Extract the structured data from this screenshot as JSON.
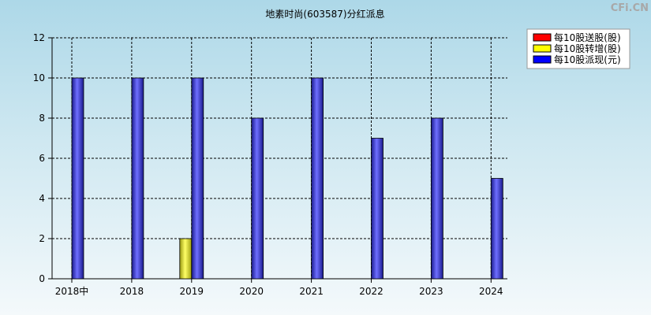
{
  "watermark": "CFi.CN",
  "chart_data": {
    "type": "bar",
    "title": "地素时尚(603587)分红派息",
    "xlabel": "",
    "ylabel": "",
    "categories": [
      "2018中",
      "2018",
      "2019",
      "2020",
      "2021",
      "2022",
      "2023",
      "2024"
    ],
    "series": [
      {
        "name": "每10股送股(股)",
        "color": "#ff0000",
        "values": [
          0,
          0,
          0,
          0,
          0,
          0,
          0,
          0
        ]
      },
      {
        "name": "每10股转增(股)",
        "color": "#ffff00",
        "values": [
          0,
          0,
          2,
          0,
          0,
          0,
          0,
          0
        ]
      },
      {
        "name": "每10股派现(元)",
        "color": "#0000ff",
        "values": [
          10,
          10,
          10,
          8,
          10,
          7,
          8,
          5
        ]
      }
    ],
    "ylim": [
      0,
      12
    ],
    "yticks": [
      0,
      2,
      4,
      6,
      8,
      10,
      12
    ],
    "grid": true,
    "legend": "top-right"
  }
}
